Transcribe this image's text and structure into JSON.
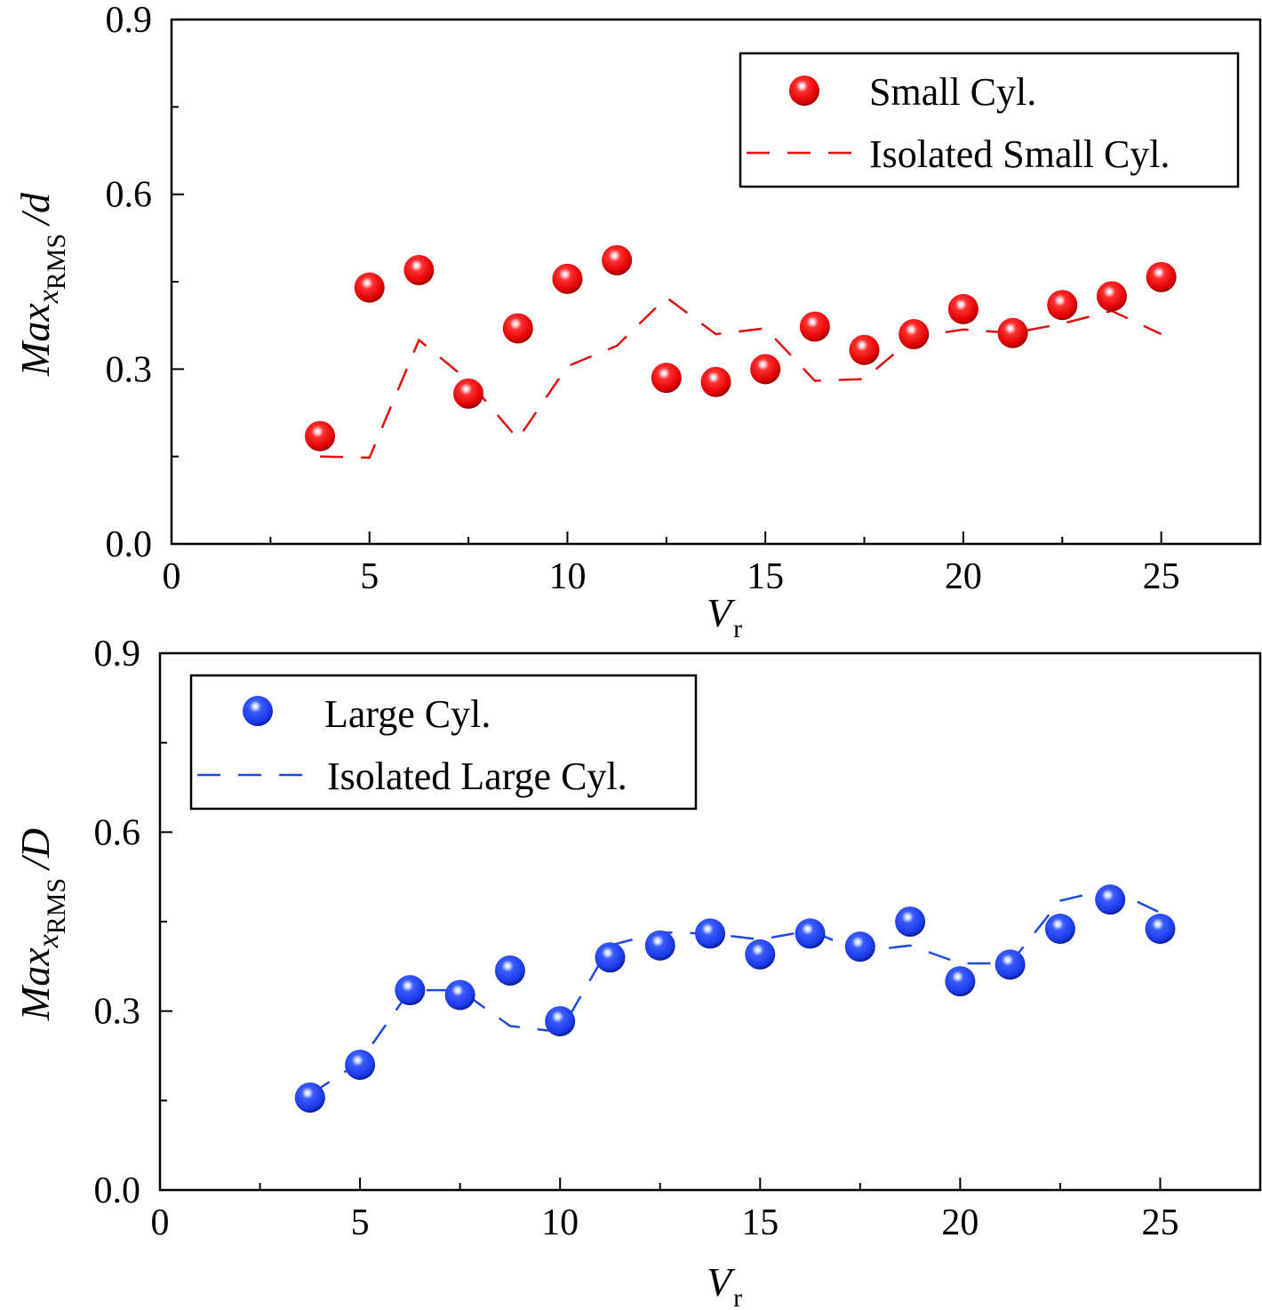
{
  "chart_data": [
    {
      "type": "scatter",
      "xlabel": {
        "main": "V",
        "sub": "r"
      },
      "ylabel": {
        "main": "Max",
        "x": "x",
        "sub": "RMS",
        "suffix": "/d"
      },
      "xlim": [
        0,
        27.5
      ],
      "ylim": [
        0,
        0.9
      ],
      "xticks": [
        "0",
        "5",
        "10",
        "15",
        "20",
        "25"
      ],
      "yticks": [
        "0.0",
        "0.3",
        "0.6",
        "0.9"
      ],
      "legend_position": "top-right",
      "grid": false,
      "colors": {
        "series": "#ff1a1a",
        "dashed": "#e01010"
      },
      "series": [
        {
          "name": "Small Cyl.",
          "style": "sphere-marker",
          "x": [
            3.75,
            5.0,
            6.25,
            7.5,
            8.75,
            10.0,
            11.25,
            12.5,
            13.75,
            15.0,
            16.25,
            17.5,
            18.75,
            20.0,
            21.25,
            22.5,
            23.75,
            25.0
          ],
          "y": [
            0.185,
            0.44,
            0.47,
            0.258,
            0.37,
            0.455,
            0.487,
            0.285,
            0.278,
            0.3,
            0.373,
            0.333,
            0.36,
            0.403,
            0.362,
            0.41,
            0.425,
            0.458
          ]
        },
        {
          "name": "Isolated Small Cyl.",
          "style": "dashed-line",
          "x": [
            3.75,
            5.0,
            6.25,
            7.5,
            8.75,
            10.0,
            11.25,
            12.5,
            13.75,
            15.0,
            16.25,
            17.5,
            18.75,
            20.0,
            21.25,
            22.5,
            23.75,
            25.0
          ],
          "y": [
            0.15,
            0.148,
            0.35,
            0.28,
            0.18,
            0.305,
            0.34,
            0.423,
            0.36,
            0.37,
            0.28,
            0.283,
            0.355,
            0.368,
            0.362,
            0.378,
            0.4,
            0.36
          ]
        }
      ]
    },
    {
      "type": "scatter",
      "xlabel": {
        "main": "V",
        "sub": "r"
      },
      "ylabel": {
        "main": "Max",
        "x": "x",
        "sub": "RMS",
        "suffix": "/D"
      },
      "xlim": [
        0,
        27.5
      ],
      "ylim": [
        0,
        0.9
      ],
      "xticks": [
        "0",
        "5",
        "10",
        "15",
        "20",
        "25"
      ],
      "yticks": [
        "0.0",
        "0.3",
        "0.6",
        "0.9"
      ],
      "legend_position": "top-left",
      "grid": false,
      "colors": {
        "series": "#2a4df0",
        "dashed": "#1f4ae0"
      },
      "series": [
        {
          "name": "Large Cyl.",
          "style": "sphere-marker",
          "x": [
            3.75,
            5.0,
            6.25,
            7.5,
            8.75,
            10.0,
            11.25,
            12.5,
            13.75,
            15.0,
            16.25,
            17.5,
            18.75,
            20.0,
            21.25,
            22.5,
            23.75,
            25.0
          ],
          "y": [
            0.155,
            0.21,
            0.335,
            0.327,
            0.368,
            0.283,
            0.39,
            0.41,
            0.43,
            0.395,
            0.43,
            0.408,
            0.45,
            0.35,
            0.378,
            0.438,
            0.487,
            0.438
          ]
        },
        {
          "name": "Isolated Large Cyl.",
          "style": "dashed-line",
          "x": [
            3.75,
            5.0,
            6.25,
            7.5,
            8.75,
            10.0,
            11.25,
            12.5,
            13.75,
            15.0,
            16.25,
            17.5,
            18.75,
            20.0,
            21.25,
            22.5,
            23.75,
            25.0
          ],
          "y": [
            0.16,
            0.215,
            0.335,
            0.335,
            0.275,
            0.265,
            0.41,
            0.432,
            0.43,
            0.42,
            0.435,
            0.4,
            0.41,
            0.38,
            0.38,
            0.485,
            0.505,
            0.465
          ]
        }
      ]
    }
  ]
}
